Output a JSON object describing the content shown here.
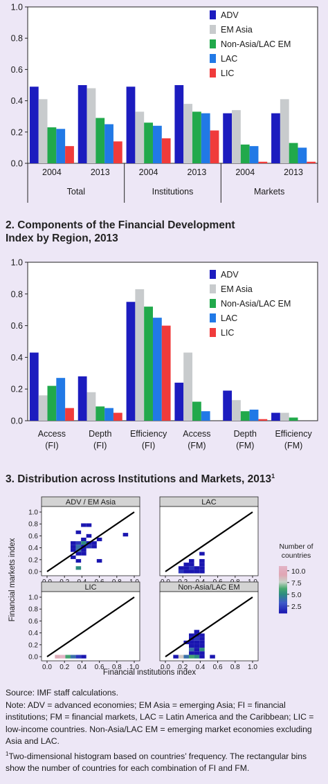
{
  "colors": {
    "ADV": "#1c1cbf",
    "EM Asia": "#c8cbcd",
    "Non-Asia/LAC EM": "#21a94b",
    "LAC": "#2179e6",
    "LIC": "#f03b3b"
  },
  "chart_data": [
    {
      "id": "panel1",
      "type": "bar",
      "title": "",
      "ylim": [
        0,
        1.0
      ],
      "yticks": [
        "0.0",
        "0.2",
        "0.4",
        "0.6",
        "0.8",
        "1.0"
      ],
      "series_names": [
        "ADV",
        "EM Asia",
        "Non-Asia/LAC EM",
        "LAC",
        "LIC"
      ],
      "groups": [
        {
          "label": "Total",
          "categories": [
            {
              "label": "2004",
              "values": [
                0.49,
                0.41,
                0.23,
                0.22,
                0.11
              ]
            },
            {
              "label": "2013",
              "values": [
                0.5,
                0.48,
                0.29,
                0.25,
                0.14
              ]
            }
          ]
        },
        {
          "label": "Institutions",
          "categories": [
            {
              "label": "2004",
              "values": [
                0.49,
                0.33,
                0.26,
                0.24,
                0.16
              ]
            },
            {
              "label": "2013",
              "values": [
                0.5,
                0.38,
                0.33,
                0.32,
                0.21
              ]
            }
          ]
        },
        {
          "label": "Markets",
          "categories": [
            {
              "label": "2004",
              "values": [
                0.32,
                0.34,
                0.12,
                0.11,
                0.01
              ]
            },
            {
              "label": "2013",
              "values": [
                0.32,
                0.41,
                0.13,
                0.1,
                0.01
              ]
            }
          ]
        }
      ],
      "legend_position": "top-right"
    },
    {
      "id": "panel2",
      "type": "bar",
      "title": "2. Components of the Financial Development Index by Region, 2013",
      "title_lines": [
        "2. Components of the Financial Development",
        "Index by Region, 2013"
      ],
      "ylim": [
        0,
        1.0
      ],
      "yticks": [
        "0.0",
        "0.2",
        "0.4",
        "0.6",
        "0.8",
        "1.0"
      ],
      "series_names": [
        "ADV",
        "EM Asia",
        "Non-Asia/LAC EM",
        "LAC",
        "LIC"
      ],
      "categories": [
        {
          "label1": "Access",
          "label2": "(FI)",
          "values": [
            0.43,
            0.16,
            0.22,
            0.27,
            0.08
          ]
        },
        {
          "label1": "Depth",
          "label2": "(FI)",
          "values": [
            0.28,
            0.18,
            0.09,
            0.08,
            0.05
          ]
        },
        {
          "label1": "Efficiency",
          "label2": "(FI)",
          "values": [
            0.75,
            0.83,
            0.72,
            0.65,
            0.6
          ]
        },
        {
          "label1": "Access",
          "label2": "(FM)",
          "values": [
            0.24,
            0.43,
            0.12,
            0.06,
            0.0
          ]
        },
        {
          "label1": "Depth",
          "label2": "(FM)",
          "values": [
            0.19,
            0.13,
            0.06,
            0.07,
            0.01
          ]
        },
        {
          "label1": "Efficiency",
          "label2": "(FM)",
          "values": [
            0.05,
            0.05,
            0.02,
            0.0,
            0.0
          ]
        }
      ],
      "legend_position": "top-right"
    },
    {
      "id": "panel3",
      "type": "heatmap",
      "title": "3. Distribution across Institutions and Markets, 2013",
      "title_superscript": "1",
      "xlabel": "Financial institutions index",
      "ylabel": "Financial markets index",
      "xlim": [
        0,
        1.0
      ],
      "ylim": [
        0,
        1.0
      ],
      "ticks": [
        "0.0",
        "0.2",
        "0.4",
        "0.6",
        "0.8",
        "1.0"
      ],
      "bin_size": 0.06,
      "reference_line": "45-degree",
      "colorbar": {
        "title_lines": [
          "Number of",
          "countries"
        ],
        "ticks": [
          "10.0",
          "7.5",
          "5.0",
          "2.5"
        ],
        "range": [
          1,
          11
        ]
      },
      "facets": [
        {
          "title": "ADV / EM Asia",
          "cells": [
            {
              "x": 0.42,
              "y": 0.78,
              "n": 1
            },
            {
              "x": 0.48,
              "y": 0.78,
              "n": 1
            },
            {
              "x": 0.36,
              "y": 0.66,
              "n": 1
            },
            {
              "x": 0.48,
              "y": 0.6,
              "n": 1
            },
            {
              "x": 0.9,
              "y": 0.62,
              "n": 1
            },
            {
              "x": 0.42,
              "y": 0.54,
              "n": 1
            },
            {
              "x": 0.6,
              "y": 0.54,
              "n": 1
            },
            {
              "x": 0.3,
              "y": 0.48,
              "n": 1
            },
            {
              "x": 0.36,
              "y": 0.48,
              "n": 2
            },
            {
              "x": 0.42,
              "y": 0.48,
              "n": 5
            },
            {
              "x": 0.48,
              "y": 0.48,
              "n": 1
            },
            {
              "x": 0.54,
              "y": 0.48,
              "n": 1
            },
            {
              "x": 0.3,
              "y": 0.42,
              "n": 1
            },
            {
              "x": 0.36,
              "y": 0.42,
              "n": 4
            },
            {
              "x": 0.42,
              "y": 0.42,
              "n": 1
            },
            {
              "x": 0.48,
              "y": 0.42,
              "n": 2
            },
            {
              "x": 0.54,
              "y": 0.42,
              "n": 1
            },
            {
              "x": 0.3,
              "y": 0.36,
              "n": 1
            },
            {
              "x": 0.36,
              "y": 0.36,
              "n": 4
            },
            {
              "x": 0.42,
              "y": 0.36,
              "n": 1
            },
            {
              "x": 0.36,
              "y": 0.3,
              "n": 1
            },
            {
              "x": 0.42,
              "y": 0.3,
              "n": 1
            },
            {
              "x": 0.6,
              "y": 0.18,
              "n": 1
            },
            {
              "x": 0.36,
              "y": 0.18,
              "n": 1
            },
            {
              "x": 0.3,
              "y": 0.24,
              "n": 1
            },
            {
              "x": 0.36,
              "y": 0.06,
              "n": 5
            }
          ]
        },
        {
          "title": "LAC",
          "cells": [
            {
              "x": 0.42,
              "y": 0.3,
              "n": 1
            },
            {
              "x": 0.3,
              "y": 0.18,
              "n": 1
            },
            {
              "x": 0.42,
              "y": 0.18,
              "n": 1
            },
            {
              "x": 0.24,
              "y": 0.12,
              "n": 1
            },
            {
              "x": 0.3,
              "y": 0.12,
              "n": 1
            },
            {
              "x": 0.42,
              "y": 0.12,
              "n": 1
            },
            {
              "x": 0.18,
              "y": 0.06,
              "n": 1
            },
            {
              "x": 0.24,
              "y": 0.06,
              "n": 1
            },
            {
              "x": 0.3,
              "y": 0.06,
              "n": 2
            },
            {
              "x": 0.36,
              "y": 0.06,
              "n": 1
            },
            {
              "x": 0.42,
              "y": 0.06,
              "n": 1
            },
            {
              "x": 0.18,
              "y": 0.0,
              "n": 2
            },
            {
              "x": 0.24,
              "y": 0.0,
              "n": 1
            },
            {
              "x": 0.3,
              "y": 0.0,
              "n": 1
            },
            {
              "x": 0.36,
              "y": 0.0,
              "n": 1
            },
            {
              "x": 0.42,
              "y": 0.0,
              "n": 1
            }
          ]
        },
        {
          "title": "LIC",
          "cells": [
            {
              "x": 0.12,
              "y": 0.0,
              "n": 9
            },
            {
              "x": 0.18,
              "y": 0.0,
              "n": 11
            },
            {
              "x": 0.24,
              "y": 0.0,
              "n": 6
            },
            {
              "x": 0.3,
              "y": 0.0,
              "n": 4
            },
            {
              "x": 0.36,
              "y": 0.0,
              "n": 2
            },
            {
              "x": 0.42,
              "y": 0.0,
              "n": 1
            }
          ]
        },
        {
          "title": "Non-Asia/LAC EM",
          "cells": [
            {
              "x": 0.36,
              "y": 0.42,
              "n": 1
            },
            {
              "x": 0.3,
              "y": 0.36,
              "n": 1
            },
            {
              "x": 0.36,
              "y": 0.36,
              "n": 1
            },
            {
              "x": 0.42,
              "y": 0.36,
              "n": 1
            },
            {
              "x": 0.3,
              "y": 0.3,
              "n": 1
            },
            {
              "x": 0.36,
              "y": 0.3,
              "n": 2
            },
            {
              "x": 0.42,
              "y": 0.3,
              "n": 1
            },
            {
              "x": 0.24,
              "y": 0.24,
              "n": 1
            },
            {
              "x": 0.3,
              "y": 0.24,
              "n": 1
            },
            {
              "x": 0.36,
              "y": 0.24,
              "n": 1
            },
            {
              "x": 0.42,
              "y": 0.24,
              "n": 1
            },
            {
              "x": 0.3,
              "y": 0.18,
              "n": 1
            },
            {
              "x": 0.36,
              "y": 0.18,
              "n": 1
            },
            {
              "x": 0.42,
              "y": 0.18,
              "n": 1
            },
            {
              "x": 0.3,
              "y": 0.12,
              "n": 4
            },
            {
              "x": 0.36,
              "y": 0.12,
              "n": 1
            },
            {
              "x": 0.42,
              "y": 0.12,
              "n": 5
            },
            {
              "x": 0.3,
              "y": 0.06,
              "n": 1
            },
            {
              "x": 0.36,
              "y": 0.06,
              "n": 1
            },
            {
              "x": 0.42,
              "y": 0.06,
              "n": 1
            },
            {
              "x": 0.12,
              "y": 0.0,
              "n": 1
            },
            {
              "x": 0.18,
              "y": 0.0,
              "n": 8
            },
            {
              "x": 0.24,
              "y": 0.0,
              "n": 4
            },
            {
              "x": 0.3,
              "y": 0.0,
              "n": 6
            },
            {
              "x": 0.36,
              "y": 0.0,
              "n": 5
            },
            {
              "x": 0.42,
              "y": 0.0,
              "n": 1
            },
            {
              "x": 0.54,
              "y": 0.0,
              "n": 1
            }
          ]
        }
      ]
    }
  ],
  "notes": {
    "source": "Source: IMF staff calculations.",
    "note": "Note: ADV = advanced economies; EM Asia = emerging Asia; FI = financial institutions; FM = financial markets, LAC = Latin America and the Caribbean; LIC = low-income countries. Non-Asia/LAC EM = emerging market economies excluding Asia and LAC.",
    "footnote_marker": "1",
    "footnote": "Two-dimensional histogram based on countries’ frequency. The rectangular bins show the number of countries for each combination of FI and FM."
  }
}
